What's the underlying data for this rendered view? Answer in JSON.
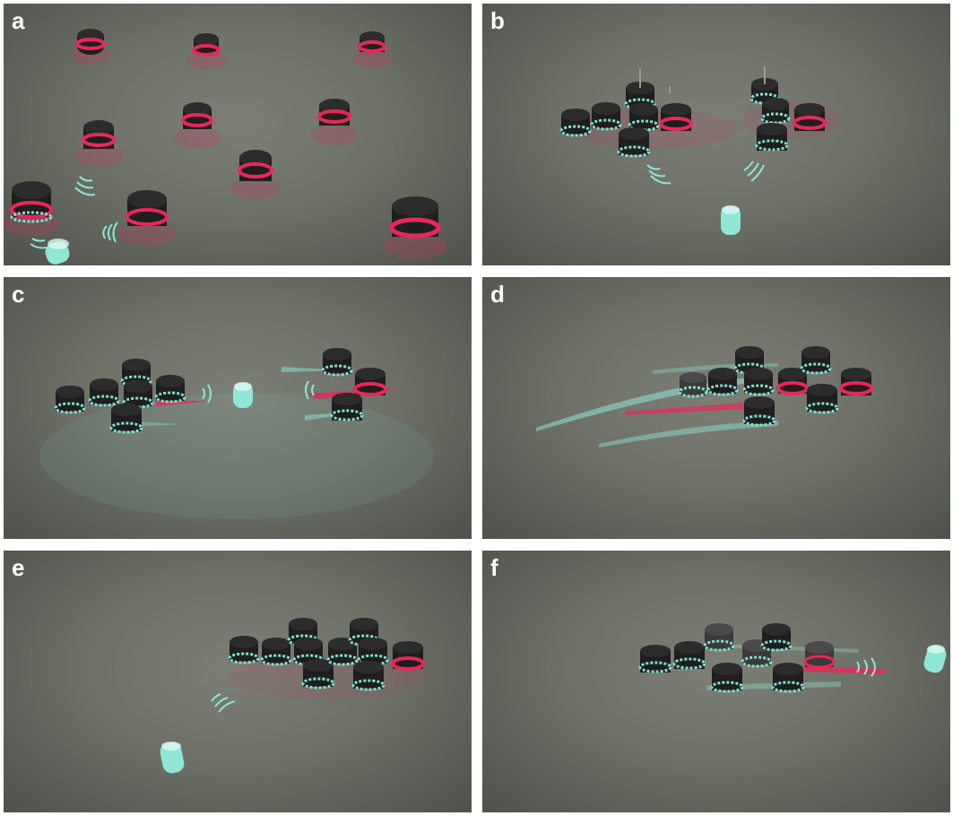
{
  "panels": [
    {
      "id": "a",
      "label": "a"
    },
    {
      "id": "b",
      "label": "b"
    },
    {
      "id": "c",
      "label": "c"
    },
    {
      "id": "d",
      "label": "d"
    },
    {
      "id": "e",
      "label": "e"
    },
    {
      "id": "f",
      "label": "f"
    }
  ],
  "colors": {
    "floor": "#6e7168",
    "robot_body": "#1e1e1e",
    "ring_red": "#e8285a",
    "ring_cyan": "#7fe0cf",
    "beacon": "#8fe6d5",
    "label": "#ffffff"
  }
}
